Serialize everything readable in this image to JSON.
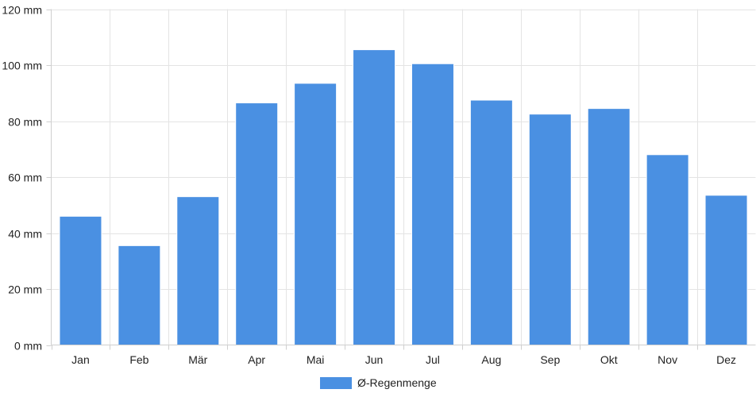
{
  "chart_data": {
    "type": "bar",
    "categories": [
      "Jan",
      "Feb",
      "Mär",
      "Apr",
      "Mai",
      "Jun",
      "Jul",
      "Aug",
      "Sep",
      "Okt",
      "Nov",
      "Dez"
    ],
    "series": [
      {
        "name": "Ø-Regenmenge",
        "values": [
          46,
          35.5,
          53,
          86.5,
          93.5,
          105.5,
          100.5,
          87.5,
          82.5,
          84.5,
          68,
          53.5
        ],
        "color": "#4a90e2"
      }
    ],
    "y_ticks": [
      "0 mm",
      "20 mm",
      "40 mm",
      "60 mm",
      "80 mm",
      "100 mm",
      "120 mm"
    ],
    "ylim": [
      0,
      120
    ],
    "y_unit": "mm",
    "grid": true,
    "legend_position": "bottom-center"
  }
}
